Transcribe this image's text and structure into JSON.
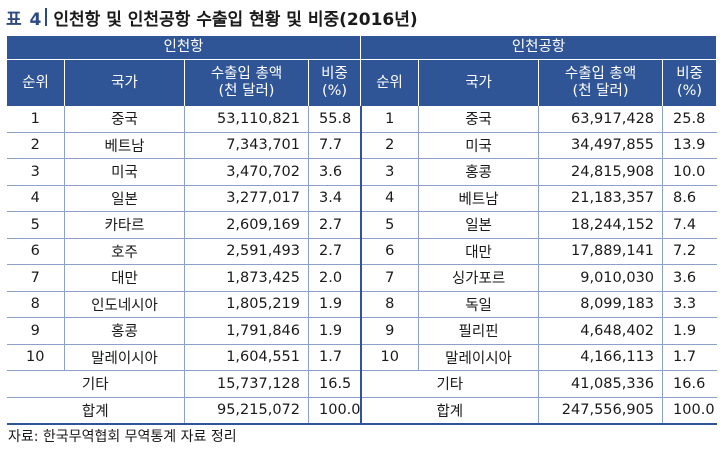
{
  "title": {
    "label": "표 4",
    "text": "인천항 및 인천공항 수출입 현황 및 비중(2016년)"
  },
  "groups": {
    "left": "인천항",
    "right": "인천공항"
  },
  "columns": {
    "rank": "순위",
    "country": "국가",
    "amount_line1": "수출입 총액",
    "amount_line2": "(천 달러)",
    "share_line1": "비중",
    "share_line2": "(%)"
  },
  "rows": [
    {
      "rank": "1",
      "l_country": "중국",
      "l_amount": "53,110,821",
      "l_share": "55.8",
      "r_country": "중국",
      "r_amount": "63,917,428",
      "r_share": "25.8"
    },
    {
      "rank": "2",
      "l_country": "베트남",
      "l_amount": "7,343,701",
      "l_share": "7.7",
      "r_country": "미국",
      "r_amount": "34,497,855",
      "r_share": "13.9"
    },
    {
      "rank": "3",
      "l_country": "미국",
      "l_amount": "3,470,702",
      "l_share": "3.6",
      "r_country": "홍콩",
      "r_amount": "24,815,908",
      "r_share": "10.0"
    },
    {
      "rank": "4",
      "l_country": "일본",
      "l_amount": "3,277,017",
      "l_share": "3.4",
      "r_country": "베트남",
      "r_amount": "21,183,357",
      "r_share": "8.6"
    },
    {
      "rank": "5",
      "l_country": "카타르",
      "l_amount": "2,609,169",
      "l_share": "2.7",
      "r_country": "일본",
      "r_amount": "18,244,152",
      "r_share": "7.4"
    },
    {
      "rank": "6",
      "l_country": "호주",
      "l_amount": "2,591,493",
      "l_share": "2.7",
      "r_country": "대만",
      "r_amount": "17,889,141",
      "r_share": "7.2"
    },
    {
      "rank": "7",
      "l_country": "대만",
      "l_amount": "1,873,425",
      "l_share": "2.0",
      "r_country": "싱가포르",
      "r_amount": "9,010,030",
      "r_share": "3.6"
    },
    {
      "rank": "8",
      "l_country": "인도네시아",
      "l_amount": "1,805,219",
      "l_share": "1.9",
      "r_country": "독일",
      "r_amount": "8,099,183",
      "r_share": "3.3"
    },
    {
      "rank": "9",
      "l_country": "홍콩",
      "l_amount": "1,791,846",
      "l_share": "1.9",
      "r_country": "필리핀",
      "r_amount": "4,648,402",
      "r_share": "1.9"
    },
    {
      "rank": "10",
      "l_country": "말레이시아",
      "l_amount": "1,604,551",
      "l_share": "1.7",
      "r_country": "말레이시아",
      "r_amount": "4,166,113",
      "r_share": "1.7"
    }
  ],
  "others": {
    "label": "기타",
    "l_amount": "15,737,128",
    "l_share": "16.5",
    "r_amount": "41,085,336",
    "r_share": "16.6"
  },
  "total": {
    "label": "합계",
    "l_amount": "95,215,072",
    "l_share": "100.0",
    "r_amount": "247,556,905",
    "r_share": "100.0"
  },
  "source": "자료: 한국무역협회 무역통계 자료 정리",
  "colors": {
    "header_bg": "#2f5597",
    "title_label": "#2c4a83",
    "row_line": "#8da0c8"
  }
}
